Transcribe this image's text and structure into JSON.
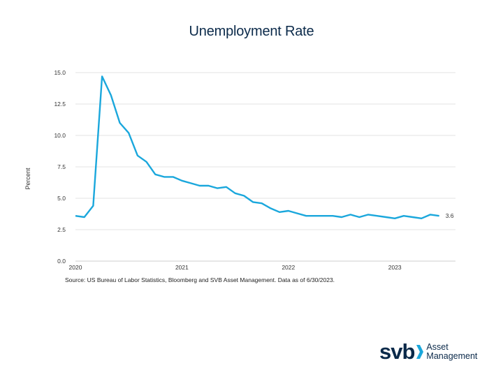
{
  "chart_data": {
    "type": "line",
    "title": "Unemployment Rate",
    "xlabel": "",
    "ylabel": "Percent",
    "ylim": [
      0,
      15
    ],
    "yticks": [
      0,
      2.5,
      5,
      7.5,
      10,
      12.5,
      15
    ],
    "ytick_labels": [
      "0.0",
      "2.5",
      "5.0",
      "7.5",
      "10.0",
      "12.5",
      "15.0"
    ],
    "xticks": [
      "2020",
      "2021",
      "2022",
      "2023"
    ],
    "grid": true,
    "series": [
      {
        "name": "Unemployment Rate",
        "color": "#1aa7dc",
        "start": "2020-01",
        "values": [
          3.6,
          3.5,
          4.4,
          14.7,
          13.2,
          11.0,
          10.2,
          8.4,
          7.9,
          6.9,
          6.7,
          6.7,
          6.4,
          6.2,
          6.0,
          6.0,
          5.8,
          5.9,
          5.4,
          5.2,
          4.7,
          4.6,
          4.2,
          3.9,
          4.0,
          3.8,
          3.6,
          3.6,
          3.6,
          3.6,
          3.5,
          3.7,
          3.5,
          3.7,
          3.6,
          3.5,
          3.4,
          3.6,
          3.5,
          3.4,
          3.7,
          3.6
        ]
      }
    ],
    "end_label": "3.6"
  },
  "source": "Source: US Bureau of Labor Statistics, Bloomberg and SVB Asset Management. Data as of 6/30/2023.",
  "logo": {
    "mark": "svb",
    "line1": "Asset",
    "line2": "Management",
    "color": "#0b2a4a"
  }
}
